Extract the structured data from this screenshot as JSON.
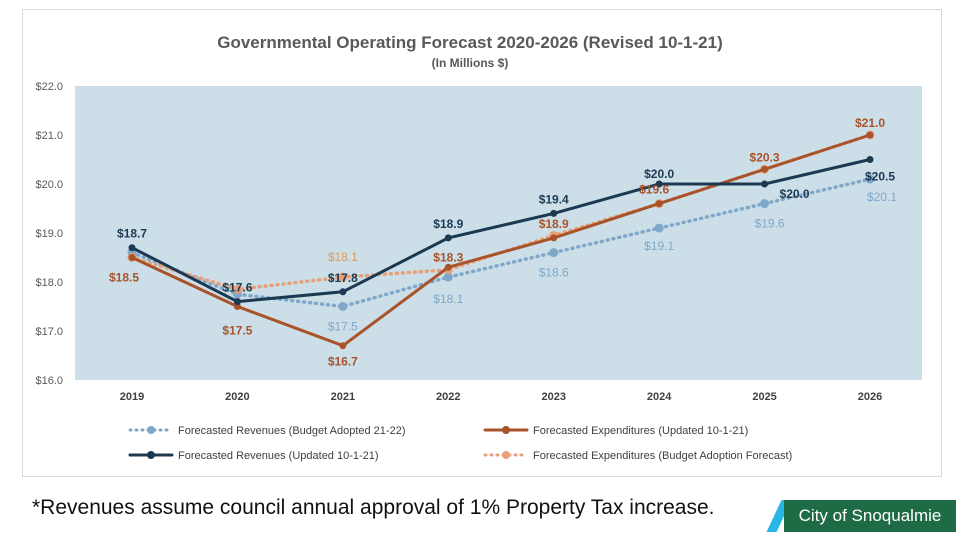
{
  "chart_data": {
    "type": "line",
    "title": "Governmental Operating Forecast 2020-2026 (Revised 10-1-21)",
    "subtitle": "(In Millions $)",
    "categories": [
      "2019",
      "2020",
      "2021",
      "2022",
      "2023",
      "2024",
      "2025",
      "2026"
    ],
    "ylim": [
      16,
      22
    ],
    "yticks": [
      "$16.0",
      "$17.0",
      "$18.0",
      "$19.0",
      "$20.0",
      "$21.0",
      "$22.0"
    ],
    "plot_background": "#ccdfe9",
    "legend_position": "bottom",
    "series": [
      {
        "name": "Forecasted Revenues (Budget Adopted 21-22)",
        "color": "#7fa7c9",
        "style": "dotted",
        "values": [
          18.6,
          17.75,
          17.5,
          18.1,
          18.6,
          19.1,
          19.6,
          20.1
        ],
        "labels": [
          null,
          null,
          "$17.5",
          "$18.1",
          "$18.6",
          "$19.1",
          "$19.6",
          "$20.1"
        ]
      },
      {
        "name": "Forecasted Expenditures (Updated 10-1-21)",
        "color": "#a9532a",
        "style": "solid",
        "values": [
          18.5,
          17.5,
          16.7,
          18.3,
          18.9,
          19.6,
          20.3,
          21.0
        ],
        "labels": [
          "$18.5",
          "$17.5",
          "$16.7",
          "$18.3",
          "$18.9",
          "$19.6",
          "$20.3",
          "$21.0"
        ]
      },
      {
        "name": "Forecasted Revenues (Updated 10-1-21)",
        "color": "#1b3a52",
        "style": "solid",
        "values": [
          18.7,
          17.6,
          17.8,
          18.9,
          19.4,
          20.0,
          20.0,
          20.5
        ],
        "labels": [
          "$18.7",
          "$17.6",
          "$17.8",
          "$18.9",
          "$19.4",
          "$20.0",
          "$20.0",
          "$20.5"
        ]
      },
      {
        "name": "Forecasted Expenditures (Budget Adoption Forecast)",
        "color": "#e8a07a",
        "style": "dotted",
        "values": [
          18.5,
          17.85,
          18.1,
          18.25,
          18.95,
          19.6,
          20.3,
          21.0
        ],
        "labels": [
          null,
          null,
          "$18.1",
          null,
          null,
          null,
          null,
          null
        ]
      }
    ]
  },
  "footnote": "*Revenues assume council annual approval of 1% Property Tax increase.",
  "logo": "City of Snoqualmie"
}
